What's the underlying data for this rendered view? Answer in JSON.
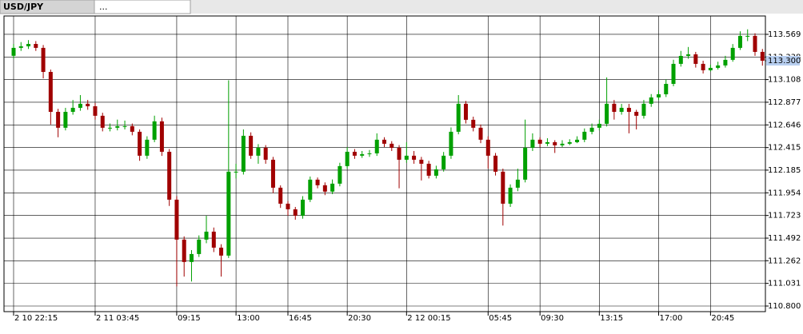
{
  "tabs": [
    "USD/JPY",
    "..."
  ],
  "chart_data": {
    "type": "candlestick",
    "categories": [
      "2 10 22:15",
      null,
      null,
      null,
      null,
      null,
      null,
      null,
      null,
      null,
      null,
      "2 11 03:45",
      null,
      null,
      null,
      null,
      null,
      null,
      null,
      null,
      null,
      null,
      "09:15",
      null,
      null,
      null,
      null,
      null,
      null,
      null,
      "13:00",
      null,
      null,
      null,
      null,
      null,
      null,
      "16:45",
      null,
      null,
      null,
      null,
      null,
      null,
      null,
      "20:30",
      null,
      null,
      null,
      null,
      null,
      null,
      null,
      "2 12 00:15",
      null,
      null,
      null,
      null,
      null,
      null,
      null,
      null,
      null,
      null,
      "05:45",
      null,
      null,
      null,
      null,
      null,
      null,
      "09:30",
      null,
      null,
      null,
      null,
      null,
      null,
      null,
      "13:15",
      null,
      null,
      null,
      null,
      null,
      null,
      null,
      "17:00",
      null,
      null,
      null,
      null,
      null,
      null,
      "20:45",
      null,
      null,
      null,
      null,
      null,
      null,
      null
    ],
    "open": [
      113.35,
      113.431,
      113.447,
      113.471,
      113.431,
      113.186,
      112.779,
      112.617,
      112.779,
      112.82,
      112.861,
      112.836,
      112.739,
      112.617,
      112.617,
      112.633,
      112.633,
      112.576,
      112.332,
      112.495,
      112.682,
      112.372,
      111.884,
      111.477,
      111.249,
      111.33,
      111.477,
      111.558,
      111.395,
      111.314,
      112.169,
      112.169,
      112.535,
      112.332,
      112.413,
      112.291,
      112.006,
      111.843,
      111.786,
      111.721,
      111.884,
      112.088,
      112.031,
      111.966,
      112.047,
      112.226,
      112.372,
      112.332,
      112.348,
      112.356,
      112.495,
      112.454,
      112.413,
      112.291,
      112.332,
      112.291,
      112.25,
      112.128,
      112.193,
      112.332,
      112.576,
      112.861,
      112.698,
      112.617,
      112.495,
      112.332,
      112.169,
      111.843,
      112.006,
      112.088,
      112.413,
      112.495,
      112.454,
      112.47,
      112.438,
      112.454,
      112.47,
      112.495,
      112.576,
      112.617,
      112.657,
      112.861,
      112.779,
      112.82,
      112.779,
      112.739,
      112.861,
      112.926,
      112.958,
      113.064,
      113.268,
      113.349,
      113.365,
      113.268,
      113.203,
      113.227,
      113.252,
      113.309,
      113.431,
      113.553,
      113.553,
      113.39
    ],
    "high": [
      113.47,
      113.49,
      113.51,
      113.5,
      113.46,
      113.21,
      112.81,
      112.82,
      112.9,
      112.95,
      112.9,
      112.87,
      112.77,
      112.66,
      112.7,
      112.69,
      112.66,
      112.6,
      112.53,
      112.74,
      112.72,
      112.4,
      111.92,
      111.51,
      111.37,
      111.52,
      111.72,
      111.6,
      111.43,
      113.1,
      112.25,
      112.6,
      112.57,
      112.45,
      112.44,
      112.32,
      112.03,
      111.87,
      111.81,
      111.92,
      112.12,
      112.11,
      112.06,
      112.09,
      112.26,
      112.42,
      112.4,
      112.38,
      112.39,
      112.56,
      112.52,
      112.48,
      112.44,
      112.47,
      112.38,
      112.32,
      112.28,
      112.23,
      112.37,
      112.62,
      112.95,
      112.89,
      112.73,
      112.65,
      112.53,
      112.36,
      112.2,
      112.04,
      112.2,
      112.7,
      112.56,
      112.52,
      112.51,
      112.49,
      112.49,
      112.5,
      112.53,
      112.61,
      112.66,
      112.7,
      113.13,
      112.9,
      112.86,
      112.86,
      112.8,
      112.9,
      112.96,
      113.0,
      113.11,
      113.31,
      113.4,
      113.44,
      113.39,
      113.3,
      113.26,
      113.29,
      113.35,
      113.47,
      113.6,
      113.62,
      113.58,
      113.42
    ],
    "low": [
      113.32,
      113.4,
      113.42,
      113.4,
      113.12,
      112.65,
      112.52,
      112.59,
      112.75,
      112.79,
      112.8,
      112.7,
      112.58,
      112.58,
      112.59,
      112.6,
      112.54,
      112.28,
      112.3,
      112.47,
      112.33,
      111.82,
      111.0,
      111.1,
      111.05,
      111.3,
      111.44,
      111.35,
      111.1,
      111.29,
      112.1,
      112.14,
      112.3,
      112.25,
      112.25,
      111.95,
      111.8,
      111.72,
      111.68,
      111.69,
      111.86,
      112.0,
      111.93,
      111.94,
      112.02,
      112.2,
      112.3,
      112.31,
      112.32,
      112.33,
      112.42,
      112.38,
      112.0,
      112.26,
      112.25,
      112.08,
      112.1,
      112.1,
      112.17,
      112.3,
      112.55,
      112.66,
      112.58,
      112.46,
      112.2,
      112.13,
      111.62,
      111.81,
      111.97,
      112.06,
      112.38,
      112.42,
      112.43,
      112.36,
      112.42,
      112.44,
      112.46,
      112.47,
      112.55,
      112.59,
      112.63,
      112.7,
      112.75,
      112.56,
      112.6,
      112.71,
      112.83,
      112.9,
      112.93,
      113.04,
      113.24,
      113.32,
      113.23,
      113.17,
      113.19,
      113.21,
      113.23,
      113.29,
      113.41,
      113.5,
      113.35,
      113.25
    ],
    "close": [
      113.431,
      113.447,
      113.471,
      113.431,
      113.186,
      112.779,
      112.617,
      112.779,
      112.82,
      112.861,
      112.836,
      112.739,
      112.617,
      112.617,
      112.633,
      112.633,
      112.576,
      112.332,
      112.495,
      112.682,
      112.372,
      111.884,
      111.477,
      111.249,
      111.33,
      111.477,
      111.558,
      111.395,
      111.314,
      112.169,
      112.169,
      112.535,
      112.332,
      112.413,
      112.291,
      112.006,
      111.843,
      111.786,
      111.721,
      111.884,
      112.088,
      112.031,
      111.966,
      112.047,
      112.226,
      112.372,
      112.332,
      112.348,
      112.356,
      112.495,
      112.454,
      112.413,
      112.291,
      112.332,
      112.291,
      112.25,
      112.128,
      112.193,
      112.332,
      112.576,
      112.861,
      112.698,
      112.617,
      112.495,
      112.332,
      112.169,
      111.843,
      112.006,
      112.088,
      112.413,
      112.495,
      112.454,
      112.47,
      112.438,
      112.454,
      112.47,
      112.495,
      112.576,
      112.617,
      112.657,
      112.861,
      112.779,
      112.82,
      112.779,
      112.739,
      112.861,
      112.926,
      112.958,
      113.064,
      113.268,
      113.349,
      113.365,
      113.268,
      113.203,
      113.227,
      113.252,
      113.309,
      113.431,
      113.553,
      113.553,
      113.39,
      113.3
    ],
    "up_color": "#00a000",
    "down_color": "#a00000",
    "current_price": {
      "value": 113.3,
      "label": "113.300"
    },
    "ylim": [
      110.743,
      113.756
    ],
    "yticks": [
      113.569,
      113.338,
      113.108,
      112.877,
      112.646,
      112.415,
      112.185,
      111.954,
      111.723,
      111.492,
      111.262,
      111.031,
      {
        "value": 110.8,
        "label": "110.800"
      }
    ],
    "grid": true
  }
}
